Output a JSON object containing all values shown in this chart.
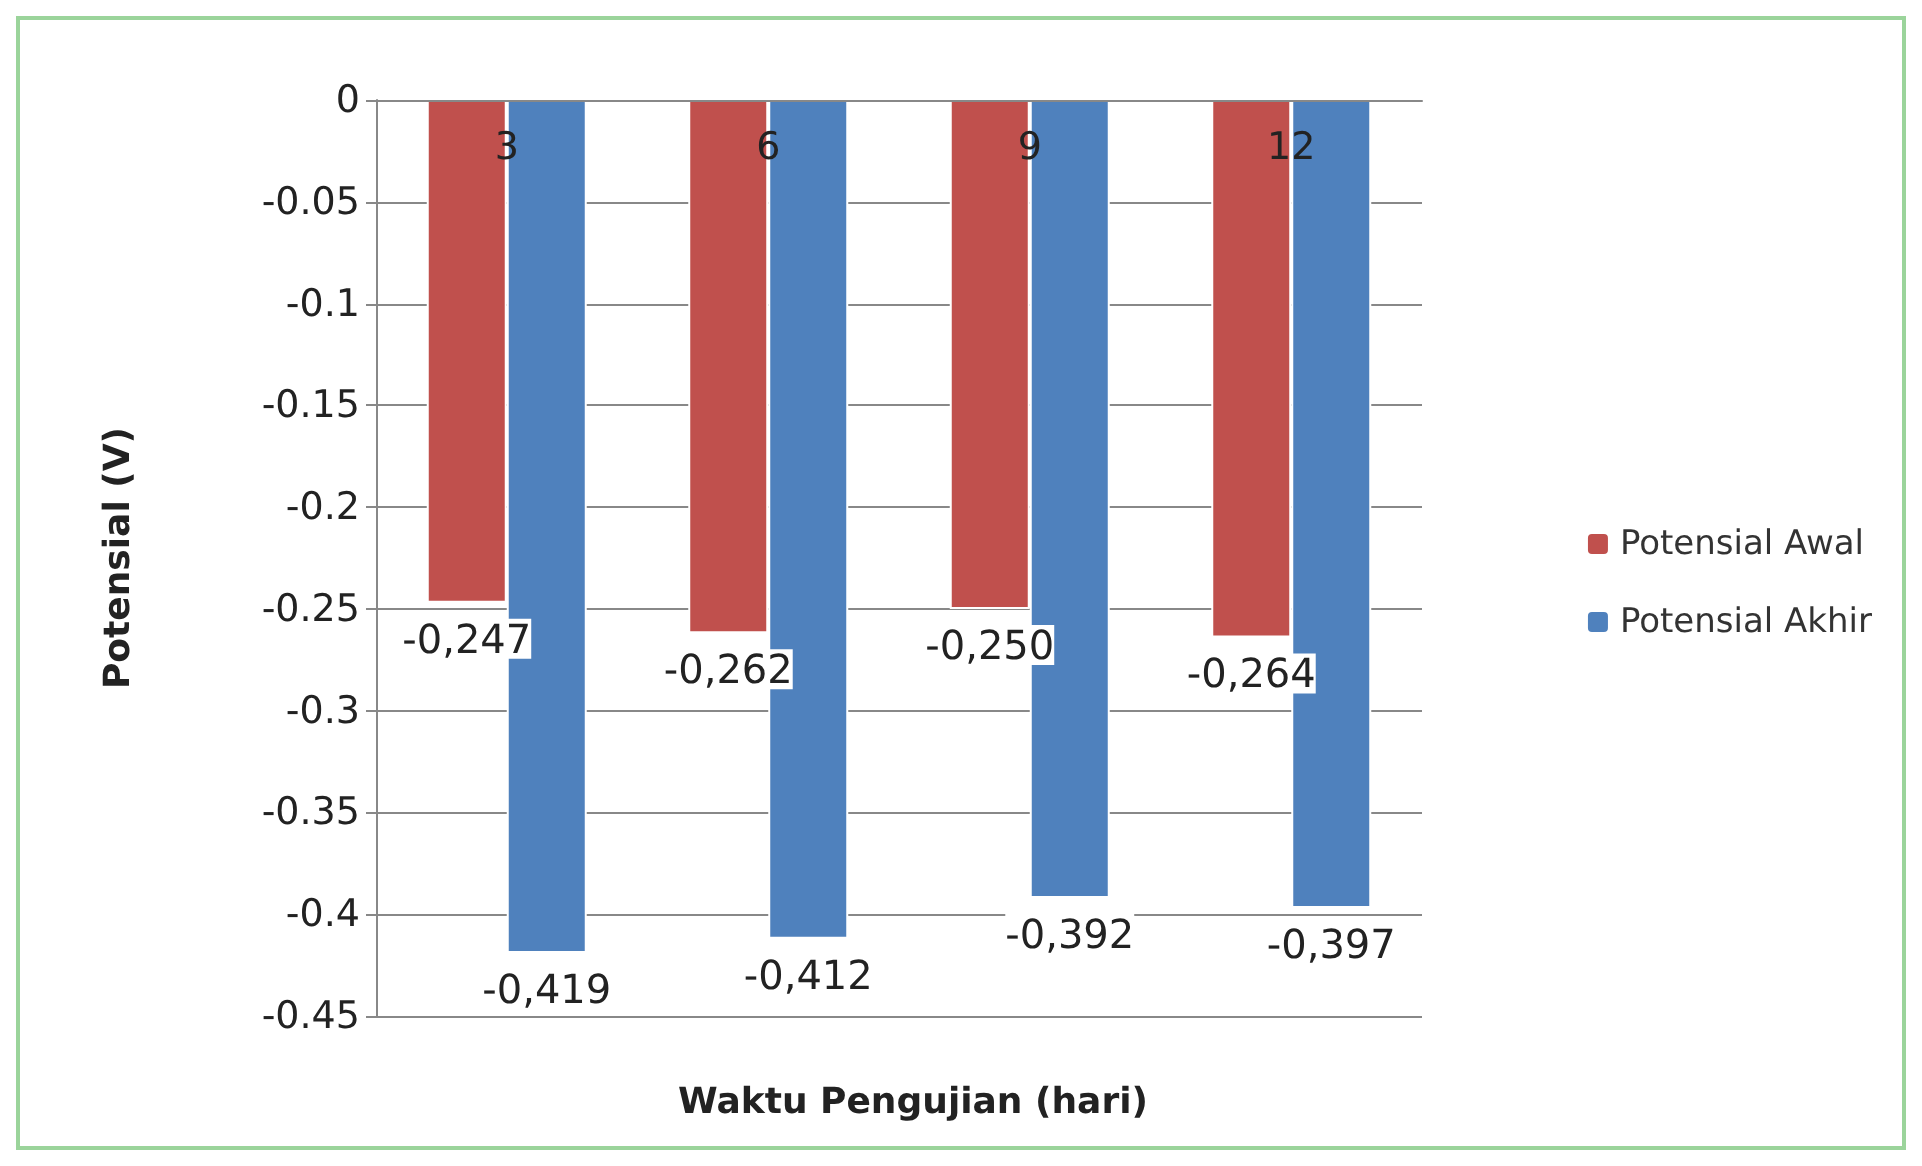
{
  "chart_data": {
    "type": "bar",
    "xlabel": "Waktu Pengujian (hari)",
    "ylabel": "Potensial (V)",
    "categories": [
      "3",
      "6",
      "9",
      "12"
    ],
    "series": [
      {
        "name": "Potensial Awal",
        "color": "#c0504d",
        "values": [
          -0.247,
          -0.262,
          -0.25,
          -0.264
        ],
        "value_labels": [
          "-0,247",
          "-0,262",
          "-0,250",
          "-0,264"
        ]
      },
      {
        "name": "Potensial Akhir",
        "color": "#4f81bd",
        "values": [
          -0.419,
          -0.412,
          -0.392,
          -0.397
        ],
        "value_labels": [
          "-0,419",
          "-0,412",
          "-0,392",
          "-0,397"
        ]
      }
    ],
    "ylim": [
      -0.45,
      0
    ],
    "yticks": [
      0,
      -0.05,
      -0.1,
      -0.15,
      -0.2,
      -0.25,
      -0.3,
      -0.35,
      -0.4,
      -0.45
    ],
    "grid": "y",
    "legend": "right"
  }
}
